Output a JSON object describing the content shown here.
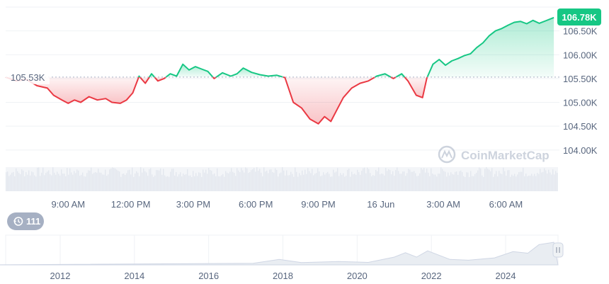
{
  "chart_data": {
    "type": "line",
    "baseline_label": "105.53K",
    "baseline_value": 105.53,
    "current_label": "106.78K",
    "current_value": 106.78,
    "y_ticks": [
      {
        "value": 106.5,
        "label": "106.50K"
      },
      {
        "value": 106.0,
        "label": "106.00K"
      },
      {
        "value": 105.5,
        "label": "105.50K"
      },
      {
        "value": 105.0,
        "label": "105.00K"
      },
      {
        "value": 104.5,
        "label": "104.50K"
      },
      {
        "value": 104.0,
        "label": "104.00K"
      }
    ],
    "x_ticks": [
      "9:00 AM",
      "12:00 PM",
      "3:00 PM",
      "6:00 PM",
      "9:00 PM",
      "16 Jun",
      "3:00 AM",
      "6:00 AM"
    ],
    "x_tick_hours": [
      3,
      6,
      9,
      12,
      15,
      18,
      21,
      24
    ],
    "x_range_hours": [
      0,
      26.5
    ],
    "ylim": [
      103.7,
      107.0
    ],
    "series": [
      {
        "points": [
          [
            0.0,
            105.53
          ],
          [
            0.5,
            105.45
          ],
          [
            1.0,
            105.48
          ],
          [
            1.5,
            105.35
          ],
          [
            2.0,
            105.3
          ],
          [
            2.3,
            105.15
          ],
          [
            2.7,
            105.05
          ],
          [
            3.0,
            104.98
          ],
          [
            3.3,
            105.05
          ],
          [
            3.6,
            105.0
          ],
          [
            4.0,
            105.12
          ],
          [
            4.4,
            105.05
          ],
          [
            4.8,
            105.08
          ],
          [
            5.1,
            105.0
          ],
          [
            5.5,
            104.98
          ],
          [
            5.8,
            105.05
          ],
          [
            6.1,
            105.2
          ],
          [
            6.4,
            105.55
          ],
          [
            6.7,
            105.4
          ],
          [
            7.0,
            105.6
          ],
          [
            7.3,
            105.45
          ],
          [
            7.6,
            105.5
          ],
          [
            7.9,
            105.6
          ],
          [
            8.2,
            105.55
          ],
          [
            8.5,
            105.8
          ],
          [
            8.8,
            105.68
          ],
          [
            9.1,
            105.75
          ],
          [
            9.4,
            105.7
          ],
          [
            9.7,
            105.65
          ],
          [
            10.0,
            105.5
          ],
          [
            10.4,
            105.62
          ],
          [
            10.8,
            105.55
          ],
          [
            11.1,
            105.6
          ],
          [
            11.4,
            105.72
          ],
          [
            11.8,
            105.63
          ],
          [
            12.2,
            105.58
          ],
          [
            12.6,
            105.55
          ],
          [
            13.0,
            105.57
          ],
          [
            13.4,
            105.52
          ],
          [
            13.8,
            105.0
          ],
          [
            14.2,
            104.88
          ],
          [
            14.6,
            104.65
          ],
          [
            15.0,
            104.55
          ],
          [
            15.3,
            104.7
          ],
          [
            15.6,
            104.6
          ],
          [
            15.9,
            104.85
          ],
          [
            16.2,
            105.1
          ],
          [
            16.6,
            105.3
          ],
          [
            17.0,
            105.4
          ],
          [
            17.4,
            105.45
          ],
          [
            17.8,
            105.55
          ],
          [
            18.2,
            105.6
          ],
          [
            18.6,
            105.5
          ],
          [
            19.0,
            105.6
          ],
          [
            19.3,
            105.45
          ],
          [
            19.7,
            105.15
          ],
          [
            20.0,
            105.1
          ],
          [
            20.2,
            105.5
          ],
          [
            20.5,
            105.8
          ],
          [
            20.8,
            105.9
          ],
          [
            21.1,
            105.78
          ],
          [
            21.4,
            105.87
          ],
          [
            21.7,
            105.92
          ],
          [
            22.0,
            105.98
          ],
          [
            22.3,
            106.02
          ],
          [
            22.6,
            106.15
          ],
          [
            22.9,
            106.25
          ],
          [
            23.2,
            106.4
          ],
          [
            23.5,
            106.5
          ],
          [
            23.8,
            106.55
          ],
          [
            24.1,
            106.62
          ],
          [
            24.4,
            106.68
          ],
          [
            24.7,
            106.7
          ],
          [
            25.0,
            106.65
          ],
          [
            25.3,
            106.72
          ],
          [
            25.6,
            106.66
          ],
          [
            25.9,
            106.71
          ],
          [
            26.3,
            106.78
          ]
        ]
      }
    ],
    "volume_note": "",
    "history_x_ticks": [
      "2012",
      "2014",
      "2016",
      "2018",
      "2020",
      "2022",
      "2024"
    ]
  },
  "watermark": "CoinMarketCap",
  "history_button": {
    "count": "111"
  },
  "colors": {
    "up": "#16c784",
    "down": "#ea3943",
    "baseline": "#a6b0c3",
    "badge": "#16c784",
    "grid": "#eff2f5"
  }
}
